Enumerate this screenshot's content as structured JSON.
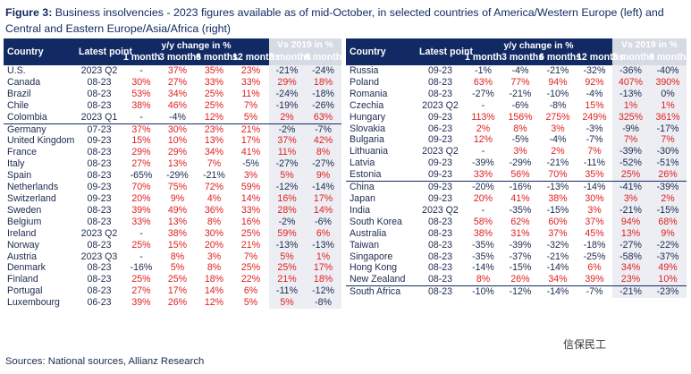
{
  "figure": {
    "label": "Figure 3:",
    "title": "Business insolvencies - 2023 figures available as of mid-October, in selected countries of America/Western Europe (left) and Central and Eastern Europe/Asia/Africa (right)"
  },
  "headers": {
    "country": "Country",
    "latest_point": "Latest point",
    "yy_group": "y/y change in %",
    "vs2019_group": "Vs 2019 in %",
    "yy_cols": [
      "1 month",
      "3 months",
      "6 months",
      "12 months"
    ],
    "vs_cols": [
      "3 months",
      "6 months"
    ]
  },
  "left_table": {
    "rows": [
      {
        "country": "U.S.",
        "latest": "2023 Q2",
        "m1": "-",
        "m3": "37%",
        "m6": "35%",
        "m12": "23%",
        "v3": "-21%",
        "v6": "-24%"
      },
      {
        "country": "Canada",
        "latest": "08-23",
        "m1": "30%",
        "m3": "27%",
        "m6": "33%",
        "m12": "33%",
        "v3": "29%",
        "v6": "18%"
      },
      {
        "country": "Brazil",
        "latest": "08-23",
        "m1": "53%",
        "m3": "34%",
        "m6": "25%",
        "m12": "11%",
        "v3": "-24%",
        "v6": "-18%"
      },
      {
        "country": "Chile",
        "latest": "08-23",
        "m1": "38%",
        "m3": "46%",
        "m6": "25%",
        "m12": "7%",
        "v3": "-19%",
        "v6": "-26%"
      },
      {
        "country": "Colombia",
        "latest": "2023 Q1",
        "m1": "-",
        "m3": "-4%",
        "m6": "12%",
        "m12": "5%",
        "v3": "2%",
        "v6": "63%"
      },
      {
        "country": "Germany",
        "latest": "07-23",
        "m1": "37%",
        "m3": "30%",
        "m6": "23%",
        "m12": "21%",
        "v3": "-2%",
        "v6": "-7%"
      },
      {
        "country": "United Kingdom",
        "latest": "09-23",
        "m1": "15%",
        "m3": "10%",
        "m6": "13%",
        "m12": "17%",
        "v3": "37%",
        "v6": "42%"
      },
      {
        "country": "France",
        "latest": "08-23",
        "m1": "29%",
        "m3": "29%",
        "m6": "34%",
        "m12": "41%",
        "v3": "11%",
        "v6": "8%"
      },
      {
        "country": "Italy",
        "latest": "08-23",
        "m1": "27%",
        "m3": "13%",
        "m6": "7%",
        "m12": "-5%",
        "v3": "-27%",
        "v6": "-27%"
      },
      {
        "country": "Spain",
        "latest": "08-23",
        "m1": "-65%",
        "m3": "-29%",
        "m6": "-21%",
        "m12": "3%",
        "v3": "5%",
        "v6": "9%"
      },
      {
        "country": "Netherlands",
        "latest": "09-23",
        "m1": "70%",
        "m3": "75%",
        "m6": "72%",
        "m12": "59%",
        "v3": "-12%",
        "v6": "-14%"
      },
      {
        "country": "Switzerland",
        "latest": "09-23",
        "m1": "20%",
        "m3": "9%",
        "m6": "4%",
        "m12": "14%",
        "v3": "16%",
        "v6": "17%"
      },
      {
        "country": "Sweden",
        "latest": "08-23",
        "m1": "39%",
        "m3": "49%",
        "m6": "36%",
        "m12": "33%",
        "v3": "28%",
        "v6": "14%"
      },
      {
        "country": "Belgium",
        "latest": "08-23",
        "m1": "33%",
        "m3": "13%",
        "m6": "8%",
        "m12": "16%",
        "v3": "-2%",
        "v6": "-6%"
      },
      {
        "country": "Ireland",
        "latest": "2023 Q2",
        "m1": "-",
        "m3": "38%",
        "m6": "30%",
        "m12": "25%",
        "v3": "59%",
        "v6": "6%"
      },
      {
        "country": "Norway",
        "latest": "08-23",
        "m1": "25%",
        "m3": "15%",
        "m6": "20%",
        "m12": "21%",
        "v3": "-13%",
        "v6": "-13%"
      },
      {
        "country": "Austria",
        "latest": "2023 Q3",
        "m1": "-",
        "m3": "8%",
        "m6": "3%",
        "m12": "7%",
        "v3": "5%",
        "v6": "1%"
      },
      {
        "country": "Denmark",
        "latest": "08-23",
        "m1": "-16%",
        "m3": "5%",
        "m6": "8%",
        "m12": "25%",
        "v3": "25%",
        "v6": "17%"
      },
      {
        "country": "Finland",
        "latest": "08-23",
        "m1": "25%",
        "m3": "25%",
        "m6": "18%",
        "m12": "22%",
        "v3": "21%",
        "v6": "18%"
      },
      {
        "country": "Portugal",
        "latest": "08-23",
        "m1": "27%",
        "m3": "17%",
        "m6": "14%",
        "m12": "6%",
        "v3": "-11%",
        "v6": "-12%"
      },
      {
        "country": "Luxembourg",
        "latest": "06-23",
        "m1": "39%",
        "m3": "26%",
        "m6": "12%",
        "m12": "5%",
        "v3": "5%",
        "v6": "-8%"
      }
    ]
  },
  "right_table": {
    "rows": [
      {
        "country": "Russia",
        "latest": "09-23",
        "m1": "-1%",
        "m3": "-4%",
        "m6": "-21%",
        "m12": "-32%",
        "v3": "-36%",
        "v6": "-40%"
      },
      {
        "country": "Poland",
        "latest": "08-23",
        "m1": "63%",
        "m3": "77%",
        "m6": "94%",
        "m12": "92%",
        "v3": "407%",
        "v6": "390%"
      },
      {
        "country": "Romania",
        "latest": "08-23",
        "m1": "-27%",
        "m3": "-21%",
        "m6": "-10%",
        "m12": "-4%",
        "v3": "-13%",
        "v6": "0%"
      },
      {
        "country": "Czechia",
        "latest": "2023 Q2",
        "m1": "-",
        "m3": "-6%",
        "m6": "-8%",
        "m12": "15%",
        "v3": "1%",
        "v6": "1%"
      },
      {
        "country": "Hungary",
        "latest": "09-23",
        "m1": "113%",
        "m3": "156%",
        "m6": "275%",
        "m12": "249%",
        "v3": "325%",
        "v6": "361%"
      },
      {
        "country": "Slovakia",
        "latest": "06-23",
        "m1": "2%",
        "m3": "8%",
        "m6": "3%",
        "m12": "-3%",
        "v3": "-9%",
        "v6": "-17%"
      },
      {
        "country": "Bulgaria",
        "latest": "09-23",
        "m1": "12%",
        "m3": "-5%",
        "m6": "-4%",
        "m12": "-7%",
        "v3": "7%",
        "v6": "7%"
      },
      {
        "country": "Lithuania",
        "latest": "2023 Q2",
        "m1": "-",
        "m3": "3%",
        "m6": "2%",
        "m12": "7%",
        "v3": "-39%",
        "v6": "-30%"
      },
      {
        "country": "Latvia",
        "latest": "09-23",
        "m1": "-39%",
        "m3": "-29%",
        "m6": "-21%",
        "m12": "-11%",
        "v3": "-52%",
        "v6": "-51%"
      },
      {
        "country": "Estonia",
        "latest": "09-23",
        "m1": "33%",
        "m3": "56%",
        "m6": "70%",
        "m12": "35%",
        "v3": "25%",
        "v6": "26%"
      },
      {
        "country": "China",
        "latest": "09-23",
        "m1": "-20%",
        "m3": "-16%",
        "m6": "-13%",
        "m12": "-14%",
        "v3": "-41%",
        "v6": "-39%"
      },
      {
        "country": "Japan",
        "latest": "09-23",
        "m1": "20%",
        "m3": "41%",
        "m6": "38%",
        "m12": "30%",
        "v3": "3%",
        "v6": "2%"
      },
      {
        "country": "India",
        "latest": "2023 Q2",
        "m1": "-",
        "m3": "-35%",
        "m6": "-15%",
        "m12": "3%",
        "v3": "-21%",
        "v6": "-15%"
      },
      {
        "country": "South Korea",
        "latest": "08-23",
        "m1": "58%",
        "m3": "62%",
        "m6": "60%",
        "m12": "37%",
        "v3": "94%",
        "v6": "68%"
      },
      {
        "country": "Australia",
        "latest": "08-23",
        "m1": "38%",
        "m3": "31%",
        "m6": "37%",
        "m12": "45%",
        "v3": "13%",
        "v6": "9%"
      },
      {
        "country": "Taiwan",
        "latest": "08-23",
        "m1": "-35%",
        "m3": "-39%",
        "m6": "-32%",
        "m12": "-18%",
        "v3": "-27%",
        "v6": "-22%"
      },
      {
        "country": "Singapore",
        "latest": "08-23",
        "m1": "-35%",
        "m3": "-37%",
        "m6": "-21%",
        "m12": "-25%",
        "v3": "-58%",
        "v6": "-37%"
      },
      {
        "country": "Hong Kong",
        "latest": "08-23",
        "m1": "-14%",
        "m3": "-15%",
        "m6": "-14%",
        "m12": "6%",
        "v3": "34%",
        "v6": "49%"
      },
      {
        "country": "New Zealand",
        "latest": "08-23",
        "m1": "8%",
        "m3": "26%",
        "m6": "34%",
        "m12": "39%",
        "v3": "23%",
        "v6": "10%"
      },
      {
        "country": "South Africa",
        "latest": "08-23",
        "m1": "-10%",
        "m3": "-12%",
        "m6": "-14%",
        "m12": "-7%",
        "v3": "-21%",
        "v6": "-23%"
      }
    ]
  },
  "source": "Sources: National sources, Allianz Research",
  "watermark": "信保民工",
  "colors": {
    "navy": "#122a63",
    "red": "#e02020",
    "vs_header_bg": "#d6dae3",
    "vs_cell_bg": "#eceef3"
  }
}
